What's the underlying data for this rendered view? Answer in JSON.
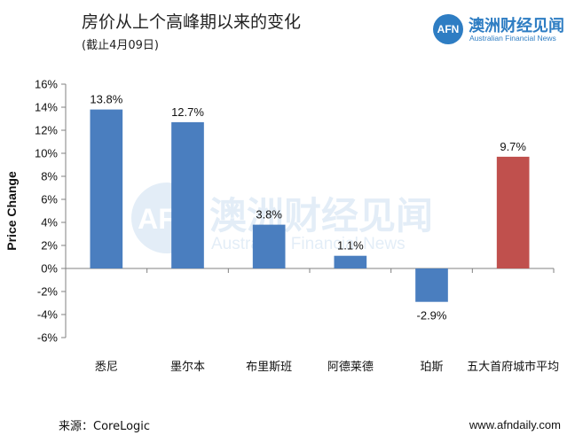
{
  "header": {
    "title": "房价从上个高峰期以来的变化",
    "subtitle": "(截止4月09日)"
  },
  "logo": {
    "mark": "AFN",
    "name": "澳洲财经见闻",
    "sub": "Australian Financial News"
  },
  "watermark": {
    "mark": "AFN",
    "name": "澳洲财经见闻",
    "sub": "Australian Financial News"
  },
  "footer": {
    "source": "来源：CoreLogic",
    "website": "www.afndaily.com"
  },
  "colors": {
    "bar_default": "#4a7ebf",
    "bar_highlight": "#c0504d",
    "gridline": "#d9d9d9",
    "logo": "#2e7dc3"
  },
  "chart_data": {
    "type": "bar",
    "categories": [
      "悉尼",
      "墨尔本",
      "布里斯班",
      "阿德莱德",
      "珀斯",
      "五大首府城市平均"
    ],
    "values": [
      13.8,
      12.7,
      3.8,
      1.1,
      -2.9,
      9.7
    ],
    "data_labels": [
      "13.8%",
      "12.7%",
      "3.8%",
      "1.1%",
      "-2.9%",
      "9.7%"
    ],
    "highlight_index": 5,
    "ylabel": "Price Change",
    "ylim": [
      -6,
      16
    ],
    "yticks": [
      -6,
      -4,
      -2,
      0,
      2,
      4,
      6,
      8,
      10,
      12,
      14,
      16
    ],
    "ytick_labels": [
      "-6%",
      "-4%",
      "-2%",
      "0%",
      "2%",
      "4%",
      "6%",
      "8%",
      "10%",
      "12%",
      "14%",
      "16%"
    ],
    "grid": false,
    "legend": "none"
  }
}
